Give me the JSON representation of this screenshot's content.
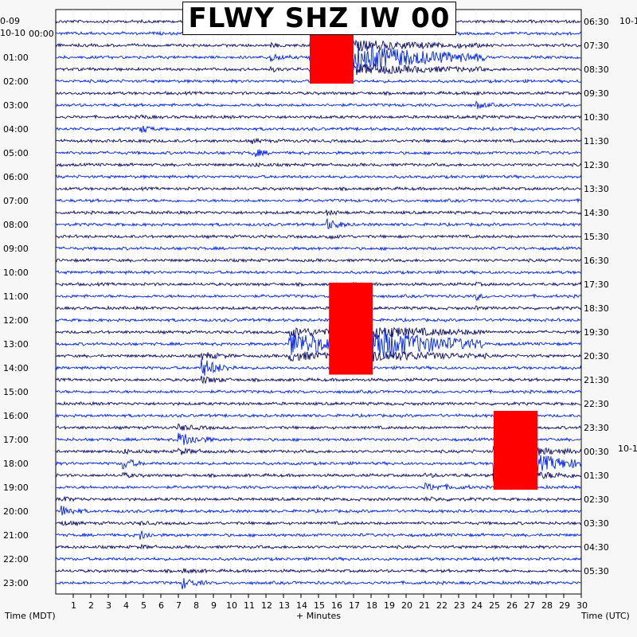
{
  "chart_data": {
    "type": "line",
    "title": "FLWY SHZ IW 00",
    "xlabel": "+ Minutes",
    "left_axis_title": "Time (MDT)",
    "right_axis_title": "Time (UTC)",
    "left_dates": [
      "0-09",
      "10-10"
    ],
    "right_dates": [
      "10-1",
      "10-1"
    ],
    "xlim": [
      0,
      30
    ],
    "x_ticks": [
      "1",
      "2",
      "3",
      "4",
      "5",
      "6",
      "7",
      "8",
      "9",
      "10",
      "11",
      "12",
      "13",
      "14",
      "15",
      "16",
      "17",
      "18",
      "19",
      "20",
      "21",
      "22",
      "23",
      "24",
      "25",
      "26",
      "27",
      "28",
      "29",
      "30"
    ],
    "left_time_labels": [
      "00:00",
      "01:00",
      "02:00",
      "03:00",
      "04:00",
      "05:00",
      "06:00",
      "07:00",
      "08:00",
      "09:00",
      "10:00",
      "11:00",
      "12:00",
      "13:00",
      "14:00",
      "15:00",
      "16:00",
      "17:00",
      "18:00",
      "19:00",
      "20:00",
      "21:00",
      "22:00",
      "23:00"
    ],
    "right_time_labels": [
      "06:30",
      "07:30",
      "08:30",
      "09:30",
      "10:30",
      "11:30",
      "12:30",
      "13:30",
      "14:30",
      "15:30",
      "16:30",
      "17:30",
      "18:30",
      "19:30",
      "20:30",
      "21:30",
      "22:30",
      "23:30",
      "00:30",
      "01:30",
      "02:30",
      "03:30",
      "04:30",
      "05:30"
    ],
    "traces_per_hour": 2,
    "trace_colors": [
      "#0c0c66",
      "#0022ee"
    ],
    "clip_color": "#ff0000",
    "events": [
      {
        "hour": 1,
        "minute": 12.2,
        "amplitude": 0.6,
        "duration": 1.2
      },
      {
        "hour": 1,
        "minute": 14.5,
        "amplitude": 3.0,
        "duration": 10.0,
        "clipped": true
      },
      {
        "hour": 3,
        "minute": 24.0,
        "amplitude": 0.5,
        "duration": 1.0
      },
      {
        "hour": 4,
        "minute": 4.8,
        "amplitude": 0.6,
        "duration": 1.0
      },
      {
        "hour": 5,
        "minute": 11.2,
        "amplitude": 0.6,
        "duration": 1.2
      },
      {
        "hour": 8,
        "minute": 15.4,
        "amplitude": 0.7,
        "duration": 1.5
      },
      {
        "hour": 11,
        "minute": 24.0,
        "amplitude": 0.4,
        "duration": 0.8
      },
      {
        "hour": 13,
        "minute": 13.3,
        "amplitude": 1.6,
        "duration": 6.0
      },
      {
        "hour": 13,
        "minute": 15.6,
        "amplitude": 3.5,
        "duration": 9.0,
        "clipped": true
      },
      {
        "hour": 14,
        "minute": 8.3,
        "amplitude": 1.2,
        "duration": 2.0
      },
      {
        "hour": 17,
        "minute": 7.0,
        "amplitude": 1.0,
        "duration": 2.0
      },
      {
        "hour": 18,
        "minute": 3.8,
        "amplitude": 0.8,
        "duration": 1.2
      },
      {
        "hour": 18,
        "minute": 25.0,
        "amplitude": 3.0,
        "duration": 5.0,
        "clipped": true
      },
      {
        "hour": 19,
        "minute": 21.0,
        "amplitude": 0.4,
        "duration": 3.0
      },
      {
        "hour": 20,
        "minute": 0.2,
        "amplitude": 0.8,
        "duration": 1.5
      },
      {
        "hour": 21,
        "minute": 4.8,
        "amplitude": 0.6,
        "duration": 1.0
      },
      {
        "hour": 23,
        "minute": 7.2,
        "amplitude": 0.7,
        "duration": 1.5
      }
    ]
  }
}
